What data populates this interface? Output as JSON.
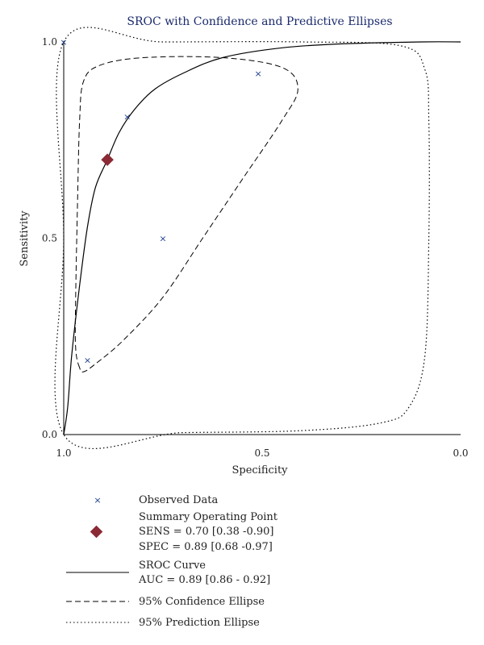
{
  "chart_data": {
    "type": "scatter",
    "title": "SROC with Confidence and Predictive Ellipses",
    "xlabel": "Specificity",
    "ylabel": "Sensitivity",
    "xlim": [
      1.0,
      0.0
    ],
    "ylim": [
      0.0,
      1.0
    ],
    "x_reversed": true,
    "x_ticks": [
      "1.0",
      "0.5",
      "0.0"
    ],
    "y_ticks": [
      "0.0",
      "0.5",
      "1.0"
    ],
    "x_tick_values": [
      1.0,
      0.5,
      0.0
    ],
    "y_tick_values": [
      0.0,
      0.5,
      1.0
    ],
    "observed_data": [
      {
        "spec": 1.0,
        "sens": 1.0
      },
      {
        "spec": 0.51,
        "sens": 0.92
      },
      {
        "spec": 0.84,
        "sens": 0.81
      },
      {
        "spec": 0.75,
        "sens": 0.5
      },
      {
        "spec": 0.94,
        "sens": 0.19
      }
    ],
    "summary_point": {
      "spec": 0.89,
      "sens": 0.7
    },
    "sroc_curve": [
      [
        1.0,
        0.0
      ],
      [
        0.99,
        0.07
      ],
      [
        0.98,
        0.2
      ],
      [
        0.96,
        0.38
      ],
      [
        0.94,
        0.53
      ],
      [
        0.92,
        0.63
      ],
      [
        0.89,
        0.7
      ],
      [
        0.86,
        0.77
      ],
      [
        0.82,
        0.83
      ],
      [
        0.77,
        0.88
      ],
      [
        0.7,
        0.92
      ],
      [
        0.6,
        0.96
      ],
      [
        0.45,
        0.985
      ],
      [
        0.3,
        0.995
      ],
      [
        0.1,
        1.0
      ],
      [
        0.0,
        1.0
      ]
    ],
    "confidence_ellipse": [
      [
        0.96,
        0.17
      ],
      [
        0.97,
        0.22
      ],
      [
        0.97,
        0.35
      ],
      [
        0.965,
        0.6
      ],
      [
        0.96,
        0.8
      ],
      [
        0.95,
        0.9
      ],
      [
        0.91,
        0.94
      ],
      [
        0.8,
        0.96
      ],
      [
        0.6,
        0.96
      ],
      [
        0.45,
        0.935
      ],
      [
        0.41,
        0.88
      ],
      [
        0.45,
        0.8
      ],
      [
        0.55,
        0.65
      ],
      [
        0.65,
        0.5
      ],
      [
        0.75,
        0.35
      ],
      [
        0.85,
        0.24
      ],
      [
        0.92,
        0.18
      ],
      [
        0.95,
        0.16
      ],
      [
        0.96,
        0.17
      ]
    ],
    "prediction_ellipse": [
      [
        1.0,
        0.0
      ],
      [
        1.0,
        0.5
      ],
      [
        1.0,
        1.0
      ],
      [
        0.75,
        1.0
      ],
      [
        0.4,
        1.0
      ],
      [
        0.15,
        0.99
      ],
      [
        0.09,
        0.93
      ],
      [
        0.08,
        0.8
      ],
      [
        0.08,
        0.5
      ],
      [
        0.09,
        0.2
      ],
      [
        0.13,
        0.07
      ],
      [
        0.2,
        0.03
      ],
      [
        0.4,
        0.01
      ],
      [
        0.7,
        0.005
      ],
      [
        1.0,
        0.0
      ]
    ],
    "legend": {
      "observed": "Observed Data",
      "summary": "Summary Operating Point",
      "sens": "SENS = 0.70 [0.38 -0.90]",
      "spec": "SPEC = 0.89 [0.68 -0.97]",
      "sroc": "SROC Curve",
      "auc": "AUC = 0.89 [0.86 - 0.92]",
      "confidence": "95% Confidence Ellipse",
      "prediction": "95% Prediction Ellipse"
    },
    "colors": {
      "observed": "#1f3f8f",
      "summary": "#8b2a35",
      "line": "#000000"
    }
  }
}
